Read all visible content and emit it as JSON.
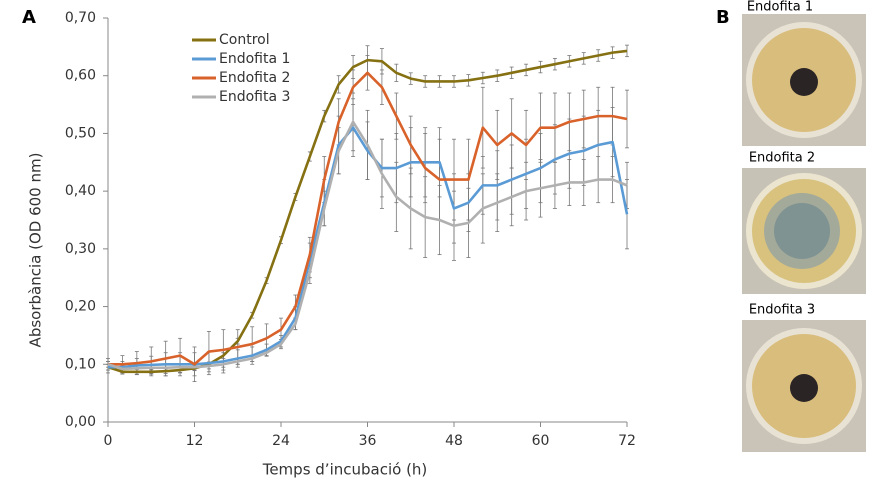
{
  "chart_data": {
    "type": "line",
    "panel_label": "A",
    "x_label": "Temps d’incubació (h)",
    "y_label": "Absorbància (OD 600 nm)",
    "x": [
      0,
      2,
      4,
      6,
      8,
      10,
      12,
      14,
      16,
      18,
      20,
      22,
      24,
      26,
      28,
      30,
      32,
      34,
      36,
      38,
      40,
      42,
      44,
      46,
      48,
      50,
      52,
      54,
      56,
      58,
      60,
      62,
      64,
      66,
      68,
      70,
      72
    ],
    "xlim": [
      0,
      72
    ],
    "xticks": [
      0,
      12,
      24,
      36,
      48,
      60,
      72
    ],
    "ylim": [
      0,
      0.7
    ],
    "yticks": [
      {
        "value": 0,
        "label": "0,00"
      },
      {
        "value": 0.1,
        "label": "0,10"
      },
      {
        "value": 0.2,
        "label": "0,20"
      },
      {
        "value": 0.3,
        "label": "0,30"
      },
      {
        "value": 0.4,
        "label": "0,40"
      },
      {
        "value": 0.5,
        "label": "0,50"
      },
      {
        "value": 0.6,
        "label": "0,60"
      },
      {
        "value": 0.7,
        "label": "0,70"
      }
    ],
    "grid": false,
    "series": [
      {
        "name": "Control",
        "color": "#857012",
        "values": [
          0.095,
          0.087,
          0.087,
          0.087,
          0.088,
          0.09,
          0.093,
          0.1,
          0.115,
          0.14,
          0.185,
          0.245,
          0.315,
          0.39,
          0.46,
          0.53,
          0.585,
          0.615,
          0.627,
          0.625,
          0.605,
          0.595,
          0.59,
          0.59,
          0.59,
          0.592,
          0.596,
          0.6,
          0.605,
          0.61,
          0.615,
          0.62,
          0.625,
          0.63,
          0.635,
          0.64,
          0.643
        ],
        "errors": [
          0.005,
          0.004,
          0.004,
          0.004,
          0.004,
          0.004,
          0.004,
          0.004,
          0.005,
          0.005,
          0.005,
          0.005,
          0.006,
          0.006,
          0.008,
          0.01,
          0.015,
          0.02,
          0.025,
          0.022,
          0.015,
          0.01,
          0.01,
          0.01,
          0.01,
          0.01,
          0.01,
          0.01,
          0.01,
          0.01,
          0.01,
          0.01,
          0.01,
          0.01,
          0.01,
          0.01,
          0.01
        ]
      },
      {
        "name": "Endofita 1",
        "color": "#5b9bd5",
        "values": [
          0.095,
          0.095,
          0.098,
          0.099,
          0.1,
          0.1,
          0.1,
          0.102,
          0.105,
          0.11,
          0.115,
          0.125,
          0.14,
          0.18,
          0.28,
          0.38,
          0.48,
          0.51,
          0.47,
          0.44,
          0.44,
          0.45,
          0.45,
          0.45,
          0.37,
          0.38,
          0.41,
          0.41,
          0.42,
          0.43,
          0.44,
          0.455,
          0.465,
          0.47,
          0.48,
          0.485,
          0.36
        ],
        "errors": [
          0.01,
          0.01,
          0.012,
          0.015,
          0.02,
          0.02,
          0.02,
          0.02,
          0.02,
          0.015,
          0.015,
          0.01,
          0.01,
          0.02,
          0.03,
          0.04,
          0.05,
          0.05,
          0.05,
          0.05,
          0.06,
          0.06,
          0.06,
          0.06,
          0.06,
          0.05,
          0.05,
          0.06,
          0.06,
          0.06,
          0.06,
          0.06,
          0.06,
          0.06,
          0.06,
          0.06,
          0.06
        ]
      },
      {
        "name": "Endofita 2",
        "color": "#d9622b",
        "values": [
          0.1,
          0.1,
          0.102,
          0.105,
          0.11,
          0.115,
          0.1,
          0.122,
          0.125,
          0.13,
          0.135,
          0.145,
          0.16,
          0.2,
          0.29,
          0.42,
          0.52,
          0.58,
          0.605,
          0.58,
          0.53,
          0.48,
          0.44,
          0.42,
          0.42,
          0.42,
          0.51,
          0.48,
          0.5,
          0.48,
          0.51,
          0.51,
          0.52,
          0.525,
          0.53,
          0.53,
          0.525
        ],
        "errors": [
          0.01,
          0.015,
          0.02,
          0.025,
          0.03,
          0.03,
          0.03,
          0.035,
          0.035,
          0.03,
          0.03,
          0.025,
          0.02,
          0.02,
          0.03,
          0.04,
          0.04,
          0.03,
          0.03,
          0.03,
          0.04,
          0.05,
          0.06,
          0.07,
          0.07,
          0.07,
          0.07,
          0.06,
          0.06,
          0.06,
          0.06,
          0.06,
          0.05,
          0.05,
          0.05,
          0.05,
          0.05
        ]
      },
      {
        "name": "Endofita 3",
        "color": "#b0b0b0",
        "values": [
          0.1,
          0.092,
          0.093,
          0.094,
          0.094,
          0.095,
          0.095,
          0.097,
          0.1,
          0.105,
          0.11,
          0.12,
          0.135,
          0.17,
          0.26,
          0.37,
          0.47,
          0.52,
          0.48,
          0.43,
          0.39,
          0.37,
          0.355,
          0.35,
          0.34,
          0.345,
          0.37,
          0.38,
          0.39,
          0.4,
          0.405,
          0.41,
          0.415,
          0.415,
          0.42,
          0.42,
          0.41
        ],
        "errors": [
          0.005,
          0.005,
          0.005,
          0.005,
          0.005,
          0.005,
          0.005,
          0.005,
          0.005,
          0.005,
          0.005,
          0.006,
          0.008,
          0.01,
          0.02,
          0.03,
          0.04,
          0.05,
          0.06,
          0.06,
          0.06,
          0.07,
          0.07,
          0.06,
          0.06,
          0.06,
          0.06,
          0.05,
          0.05,
          0.05,
          0.05,
          0.04,
          0.04,
          0.04,
          0.04,
          0.04,
          0.04
        ]
      }
    ]
  },
  "panel_b": {
    "label": "B",
    "captions": [
      "Endofita 1",
      "Endofita 2",
      "Endofita 3"
    ]
  }
}
